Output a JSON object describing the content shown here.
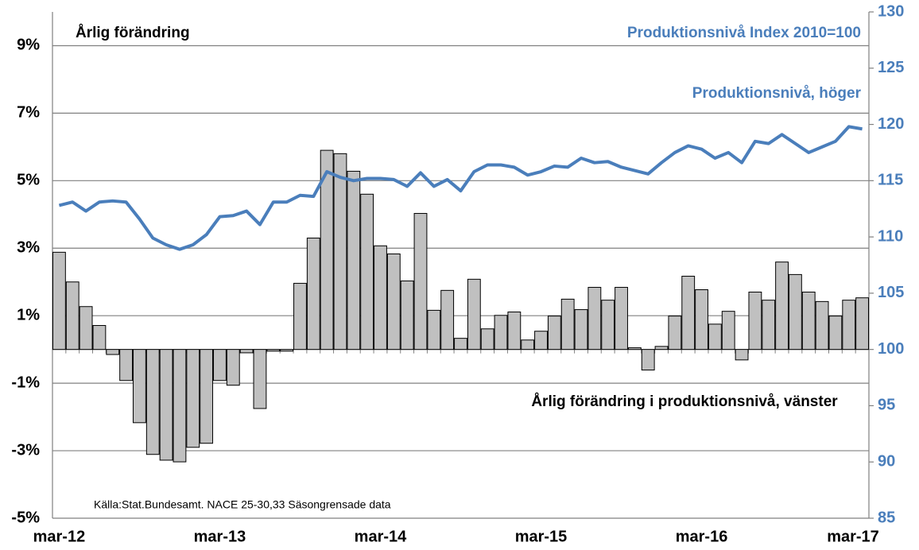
{
  "chart_data": {
    "type": "bar",
    "ylabel": "Årlig förändring",
    "y2label": "Produktionsnivå Index 2010=100",
    "source": "Källa:Stat.Bundesamt. NACE 25-30,33 Säsongrensade data",
    "categories": [
      "mar-12",
      null,
      null,
      null,
      null,
      null,
      null,
      null,
      null,
      null,
      null,
      null,
      "mar-13",
      null,
      null,
      null,
      null,
      null,
      null,
      null,
      null,
      null,
      null,
      null,
      "mar-14",
      null,
      null,
      null,
      null,
      null,
      null,
      null,
      null,
      null,
      null,
      null,
      "mar-15",
      null,
      null,
      null,
      null,
      null,
      null,
      null,
      null,
      null,
      null,
      null,
      "mar-16",
      null,
      null,
      null,
      null,
      null,
      null,
      null,
      null,
      null,
      null,
      null,
      "mar-17"
    ],
    "series": [
      {
        "name": "Årlig förändring i produktionsnivå, vänster",
        "type": "bar",
        "color": "#c0c0c0",
        "values": [
          2.88,
          2.0,
          1.27,
          0.71,
          -0.15,
          -0.92,
          -2.17,
          -3.11,
          -3.28,
          -3.33,
          -2.9,
          -2.78,
          -0.92,
          -1.06,
          -0.1,
          -1.75,
          -0.05,
          -0.05,
          1.96,
          3.3,
          5.9,
          5.8,
          5.28,
          4.6,
          3.07,
          2.83,
          2.03,
          4.03,
          1.16,
          1.75,
          0.33,
          2.08,
          0.61,
          1.01,
          1.11,
          0.28,
          0.54,
          0.99,
          1.49,
          1.18,
          1.84,
          1.46,
          1.84,
          0.05,
          -0.61,
          0.09,
          0.99,
          2.17,
          1.77,
          0.75,
          1.13,
          -0.31,
          1.7,
          1.46,
          2.59,
          2.22,
          1.7,
          1.42,
          0.99,
          1.46,
          1.53
        ]
      },
      {
        "name": "Produktionsnivå, höger",
        "type": "line",
        "axis": "y2",
        "color": "#4a7ebb",
        "values": [
          112.8,
          113.1,
          112.3,
          113.1,
          113.2,
          113.1,
          111.6,
          109.9,
          109.3,
          108.9,
          109.3,
          110.2,
          111.8,
          111.9,
          112.3,
          111.1,
          113.1,
          113.1,
          113.7,
          113.6,
          115.8,
          115.3,
          115.0,
          115.2,
          115.2,
          115.1,
          114.5,
          115.7,
          114.5,
          115.1,
          114.1,
          115.8,
          116.4,
          116.4,
          116.2,
          115.5,
          115.8,
          116.3,
          116.2,
          117.0,
          116.6,
          116.7,
          116.2,
          115.9,
          115.6,
          116.6,
          117.5,
          118.1,
          117.8,
          117.0,
          117.5,
          116.6,
          118.5,
          118.3,
          119.1,
          118.3,
          117.5,
          118.0,
          118.5,
          119.8,
          119.6
        ]
      }
    ],
    "ylim": [
      -5,
      10
    ],
    "yticks": [
      {
        "value": -5,
        "label": "-5%"
      },
      {
        "value": -3,
        "label": "-3%"
      },
      {
        "value": -1,
        "label": "-1%"
      },
      {
        "value": 1,
        "label": "1%"
      },
      {
        "value": 3,
        "label": "3%"
      },
      {
        "value": 5,
        "label": "5%"
      },
      {
        "value": 7,
        "label": "7%"
      },
      {
        "value": 9,
        "label": "9%"
      }
    ],
    "y2lim": [
      85,
      130
    ],
    "y2ticks": [
      85,
      90,
      95,
      100,
      105,
      110,
      115,
      120,
      125,
      130
    ],
    "grid": true
  }
}
